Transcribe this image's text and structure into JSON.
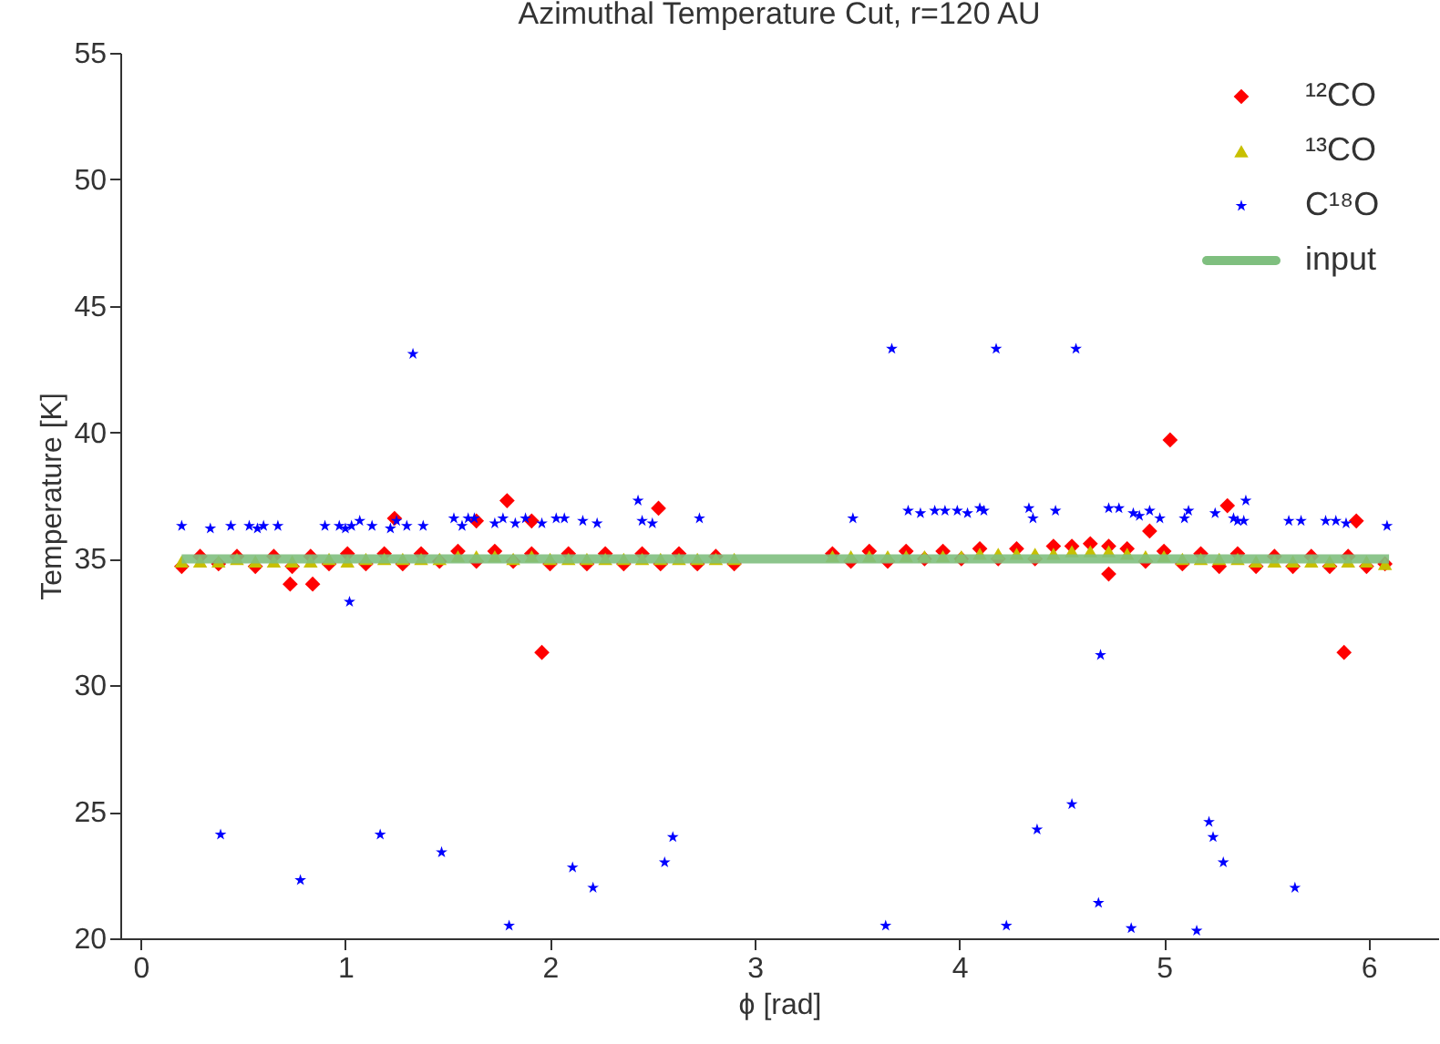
{
  "chart_data": {
    "type": "scatter",
    "title": "Azimuthal Temperature Cut, r=120 AU",
    "xlabel": "ϕ [rad]",
    "ylabel": "Temperature [K]",
    "xlim": [
      -0.1,
      6.34
    ],
    "ylim": [
      20,
      55
    ],
    "xticks": [
      0,
      1,
      2,
      3,
      4,
      5,
      6
    ],
    "yticks": [
      20,
      25,
      30,
      35,
      40,
      45,
      50,
      55
    ],
    "grid": false,
    "legend": "top right",
    "series": [
      {
        "name": "¹²CO",
        "color": "#ff0000",
        "marker": "diamond",
        "x": [
          0.2,
          0.29,
          0.38,
          0.47,
          0.56,
          0.65,
          0.74,
          0.83,
          0.92,
          1.01,
          1.1,
          1.19,
          1.28,
          1.37,
          1.46,
          1.55,
          1.64,
          1.73,
          1.82,
          1.91,
          2.0,
          2.09,
          2.18,
          2.27,
          2.36,
          2.45,
          2.54,
          2.63,
          2.72,
          2.81,
          2.9,
          3.38,
          3.47,
          3.56,
          3.65,
          3.74,
          3.83,
          3.92,
          4.01,
          4.1,
          4.19,
          4.28,
          4.37,
          4.46,
          4.55,
          4.64,
          4.73,
          4.82,
          4.91,
          5.0,
          5.09,
          5.18,
          5.27,
          5.36,
          5.45,
          5.54,
          5.63,
          5.72,
          5.81,
          5.9,
          5.99,
          6.08,
          0.73,
          0.84,
          1.24,
          1.64,
          1.79,
          1.91,
          1.96,
          2.53,
          4.73,
          4.93,
          5.03,
          5.31,
          5.88,
          5.94
        ],
        "values": [
          34.7,
          35.1,
          34.8,
          35.1,
          34.7,
          35.1,
          34.7,
          35.1,
          34.8,
          35.2,
          34.8,
          35.2,
          34.8,
          35.2,
          34.9,
          35.3,
          34.9,
          35.3,
          34.9,
          35.2,
          34.8,
          35.2,
          34.8,
          35.2,
          34.8,
          35.2,
          34.8,
          35.2,
          34.8,
          35.1,
          34.8,
          35.2,
          34.9,
          35.3,
          34.9,
          35.3,
          35.0,
          35.3,
          35.0,
          35.4,
          35.0,
          35.4,
          35.0,
          35.5,
          35.5,
          35.6,
          35.5,
          35.4,
          34.9,
          35.3,
          34.8,
          35.2,
          34.7,
          35.2,
          34.7,
          35.1,
          34.7,
          35.1,
          34.7,
          35.1,
          34.7,
          34.8,
          34.0,
          34.0,
          36.6,
          36.5,
          37.3,
          36.5,
          31.3,
          37.0,
          34.4,
          36.1,
          39.7,
          37.1,
          31.3,
          36.5
        ]
      },
      {
        "name": "¹³CO",
        "color": "#c8c000",
        "marker": "triangle",
        "x": [
          0.2,
          0.29,
          0.38,
          0.47,
          0.56,
          0.65,
          0.74,
          0.83,
          0.92,
          1.01,
          1.1,
          1.19,
          1.28,
          1.37,
          1.46,
          1.55,
          1.64,
          1.73,
          1.82,
          1.91,
          2.0,
          2.09,
          2.18,
          2.27,
          2.36,
          2.45,
          2.54,
          2.63,
          2.72,
          2.81,
          2.9,
          3.38,
          3.47,
          3.56,
          3.65,
          3.74,
          3.83,
          3.92,
          4.01,
          4.1,
          4.19,
          4.28,
          4.37,
          4.46,
          4.55,
          4.64,
          4.73,
          4.82,
          4.91,
          5.0,
          5.09,
          5.18,
          5.27,
          5.36,
          5.45,
          5.54,
          5.63,
          5.72,
          5.81,
          5.9,
          5.99,
          6.08
        ],
        "values": [
          34.9,
          34.9,
          34.9,
          35.0,
          34.9,
          34.9,
          34.9,
          34.9,
          35.0,
          34.9,
          35.0,
          35.0,
          35.0,
          35.0,
          35.0,
          35.1,
          35.1,
          35.1,
          35.0,
          35.1,
          35.0,
          35.0,
          35.0,
          35.0,
          35.0,
          35.0,
          35.0,
          35.0,
          35.0,
          35.0,
          35.0,
          35.1,
          35.1,
          35.1,
          35.1,
          35.1,
          35.1,
          35.1,
          35.1,
          35.2,
          35.2,
          35.2,
          35.2,
          35.2,
          35.3,
          35.3,
          35.3,
          35.2,
          35.1,
          35.1,
          35.0,
          35.0,
          35.0,
          35.0,
          34.9,
          34.9,
          34.9,
          34.9,
          34.9,
          34.9,
          34.9,
          34.8
        ]
      },
      {
        "name": "C¹⁸O",
        "color": "#0000ff",
        "marker": "star",
        "x": [
          0.2,
          0.34,
          0.44,
          0.53,
          0.57,
          0.6,
          0.67,
          0.9,
          0.97,
          1.0,
          1.03,
          1.07,
          1.13,
          1.22,
          1.25,
          1.3,
          1.38,
          1.33,
          1.02,
          1.53,
          1.57,
          1.6,
          1.63,
          1.73,
          1.77,
          1.83,
          1.88,
          1.96,
          2.03,
          2.07,
          2.16,
          2.23,
          2.43,
          2.45,
          2.5,
          2.73,
          3.48,
          3.67,
          3.75,
          3.81,
          3.88,
          3.93,
          3.99,
          4.04,
          4.1,
          4.12,
          4.18,
          4.34,
          4.36,
          4.47,
          4.57,
          4.73,
          4.78,
          4.85,
          4.88,
          4.93,
          4.98,
          5.1,
          5.12,
          5.25,
          5.34,
          5.36,
          5.39,
          5.4,
          5.61,
          5.67,
          5.79,
          5.84,
          5.89,
          6.09,
          4.69,
          0.39,
          0.78,
          1.17,
          1.47,
          1.8,
          2.11,
          2.21,
          2.56,
          2.6,
          3.64,
          4.23,
          4.38,
          4.55,
          4.68,
          4.84,
          5.16,
          5.22,
          5.24,
          5.29,
          5.64
        ],
        "values": [
          36.3,
          36.2,
          36.3,
          36.3,
          36.2,
          36.3,
          36.3,
          36.3,
          36.3,
          36.2,
          36.3,
          36.5,
          36.3,
          36.2,
          36.5,
          36.3,
          36.3,
          43.1,
          33.3,
          36.6,
          36.3,
          36.6,
          36.6,
          36.4,
          36.6,
          36.4,
          36.6,
          36.4,
          36.6,
          36.6,
          36.5,
          36.4,
          37.3,
          36.5,
          36.4,
          36.6,
          36.6,
          43.3,
          36.9,
          36.8,
          36.9,
          36.9,
          36.9,
          36.8,
          37.0,
          36.9,
          43.3,
          37.0,
          36.6,
          36.9,
          43.3,
          37.0,
          37.0,
          36.8,
          36.7,
          36.9,
          36.6,
          36.6,
          36.9,
          36.8,
          36.6,
          36.5,
          36.5,
          37.3,
          36.5,
          36.5,
          36.5,
          36.5,
          36.4,
          36.3,
          31.2,
          24.1,
          22.3,
          24.1,
          23.4,
          20.5,
          22.8,
          22.0,
          23.0,
          24.0,
          20.5,
          20.5,
          24.3,
          25.3,
          21.4,
          20.4,
          20.3,
          24.6,
          24.0,
          23.0,
          22.0
        ]
      },
      {
        "name": "input",
        "color": "#7fbf7f",
        "type": "line",
        "x": [
          0.2,
          6.1
        ],
        "values": [
          35,
          35
        ]
      }
    ]
  }
}
